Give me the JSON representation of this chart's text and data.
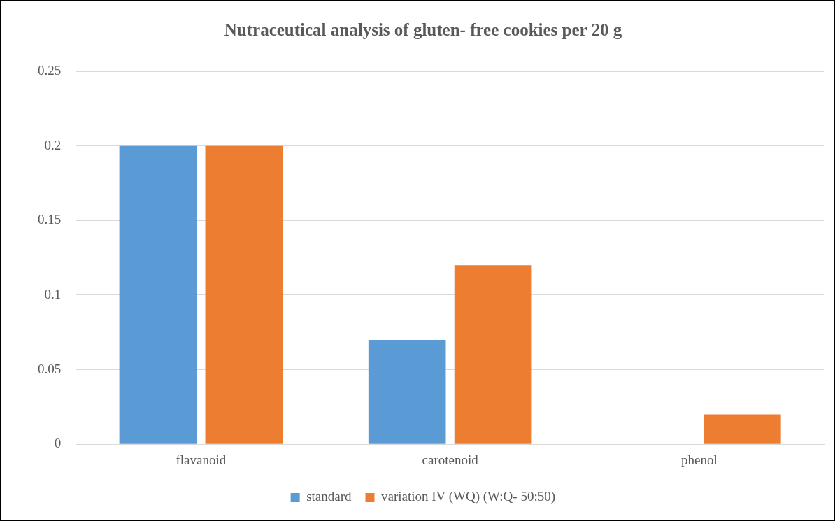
{
  "chart_data": {
    "type": "bar",
    "title": "Nutraceutical analysis of gluten- free cookies per 20 g",
    "categories": [
      "flavanoid",
      "carotenoid",
      "phenol"
    ],
    "series": [
      {
        "name": "standard",
        "color": "#5b9bd5",
        "values": [
          0.2,
          0.07,
          0
        ]
      },
      {
        "name": "variation IV (WQ) (W:Q- 50:50)",
        "color": "#ed7d31",
        "values": [
          0.2,
          0.12,
          0.02
        ]
      }
    ],
    "ylim": [
      0,
      0.25
    ],
    "yticks": [
      0,
      0.05,
      0.1,
      0.15,
      0.2,
      0.25
    ],
    "grid": "y",
    "legend": "bottom"
  }
}
